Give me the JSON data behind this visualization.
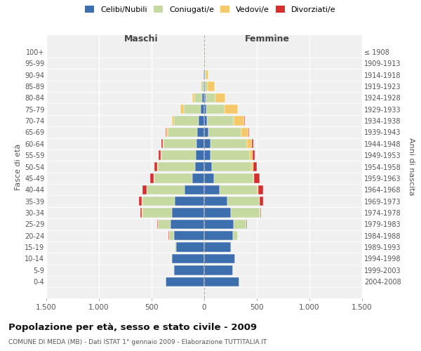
{
  "age_groups": [
    "0-4",
    "5-9",
    "10-14",
    "15-19",
    "20-24",
    "25-29",
    "30-34",
    "35-39",
    "40-44",
    "45-49",
    "50-54",
    "55-59",
    "60-64",
    "65-69",
    "70-74",
    "75-79",
    "80-84",
    "85-89",
    "90-94",
    "95-99",
    "100+"
  ],
  "birth_years": [
    "2004-2008",
    "1999-2003",
    "1994-1998",
    "1989-1993",
    "1984-1988",
    "1979-1983",
    "1974-1978",
    "1969-1973",
    "1964-1968",
    "1959-1963",
    "1954-1958",
    "1949-1953",
    "1944-1948",
    "1939-1943",
    "1934-1938",
    "1929-1933",
    "1924-1928",
    "1919-1923",
    "1914-1918",
    "1909-1913",
    "≤ 1908"
  ],
  "colors": {
    "celibi": "#3d6faf",
    "coniugati": "#c5d9a0",
    "vedovi": "#f5c96a",
    "divorziati": "#d62f2f"
  },
  "maschi": {
    "celibi": [
      370,
      290,
      310,
      270,
      290,
      320,
      310,
      280,
      185,
      115,
      90,
      80,
      75,
      65,
      55,
      35,
      18,
      8,
      5,
      3,
      2
    ],
    "coniugati": [
      0,
      2,
      2,
      8,
      45,
      120,
      280,
      310,
      360,
      360,
      350,
      330,
      310,
      280,
      230,
      160,
      75,
      18,
      5,
      0,
      0
    ],
    "vedovi": [
      0,
      0,
      0,
      0,
      0,
      1,
      1,
      1,
      2,
      2,
      5,
      5,
      10,
      15,
      20,
      30,
      22,
      8,
      2,
      0,
      0
    ],
    "divorziati": [
      0,
      0,
      0,
      0,
      2,
      5,
      15,
      28,
      42,
      38,
      30,
      18,
      15,
      10,
      5,
      2,
      0,
      0,
      0,
      0,
      0
    ]
  },
  "femmine": {
    "celibi": [
      330,
      270,
      290,
      250,
      270,
      280,
      250,
      218,
      148,
      90,
      70,
      63,
      58,
      42,
      28,
      18,
      10,
      8,
      5,
      3,
      2
    ],
    "coniugati": [
      0,
      2,
      2,
      8,
      48,
      118,
      278,
      308,
      358,
      378,
      378,
      368,
      348,
      308,
      255,
      175,
      95,
      22,
      5,
      0,
      0
    ],
    "vedovi": [
      0,
      0,
      0,
      0,
      1,
      2,
      2,
      2,
      4,
      8,
      18,
      28,
      48,
      68,
      98,
      128,
      98,
      68,
      28,
      5,
      2
    ],
    "divorziati": [
      0,
      0,
      0,
      0,
      2,
      5,
      13,
      33,
      52,
      48,
      33,
      23,
      15,
      10,
      5,
      2,
      0,
      0,
      0,
      0,
      0
    ]
  },
  "title": "Popolazione per età, sesso e stato civile - 2009",
  "subtitle": "COMUNE DI MEDA (MB) - Dati ISTAT 1° gennaio 2009 - Elaborazione TUTTITALIA.IT",
  "xlabel_left": "Maschi",
  "xlabel_right": "Femmine",
  "ylabel_left": "Fasce di età",
  "ylabel_right": "Anni di nascita",
  "xlim": 1500,
  "xticks": [
    -1500,
    -1000,
    -500,
    0,
    500,
    1000,
    1500
  ],
  "xticklabels": [
    "1.500",
    "1.000",
    "500",
    "0",
    "500",
    "1.000",
    "1.500"
  ],
  "legend_labels": [
    "Celibi/Nubili",
    "Coniugati/e",
    "Vedovi/e",
    "Divorziati/e"
  ],
  "background_color": "#f0f0f0",
  "grid_color": "#ffffff",
  "bar_edge_color": "white",
  "bar_height": 0.82
}
